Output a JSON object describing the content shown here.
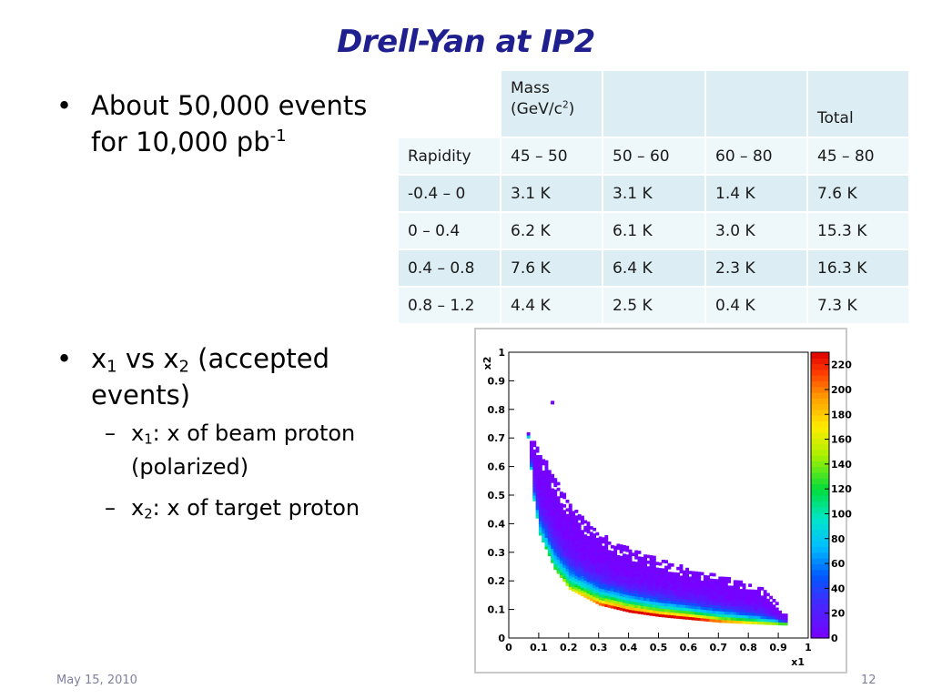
{
  "slide": {
    "title": "Drell-Yan at IP2",
    "footer_date": "May 15, 2010",
    "page_number": "12",
    "title_color": "#1f1f8f"
  },
  "bullets": {
    "b1_main": "About 50,000 events for 10,000 pb",
    "b1_sup": "-1",
    "b2_pre": "x",
    "b2_sub1": "1",
    "b2_mid": " vs x",
    "b2_sub2": "2",
    "b2_post": " (accepted events)",
    "sub1_pre": "x",
    "sub1_sub": "1",
    "sub1_post": ": x of beam proton (polarized)",
    "sub2_pre": "x",
    "sub2_sub": "2",
    "sub2_post": ": x of target proton"
  },
  "table": {
    "mass_label_a": "Mass",
    "mass_label_b": "(GeV/c",
    "mass_label_sup": "2",
    "mass_label_c": ")",
    "total_label": "Total",
    "header": [
      "Rapidity",
      "45 – 50",
      "50 – 60",
      "60 – 80",
      "45 – 80"
    ],
    "rows": [
      [
        "-0.4 – 0",
        "3.1 K",
        "3.1 K",
        "1.4 K",
        "7.6 K"
      ],
      [
        "0 – 0.4",
        "6.2 K",
        "6.1 K",
        "3.0 K",
        "15.3 K"
      ],
      [
        "0.4 – 0.8",
        "7.6 K",
        "6.4 K",
        "2.3 K",
        "16.3 K"
      ],
      [
        "0.8 – 1.2",
        "4.4 K",
        "2.5 K",
        "0.4 K",
        "7.3 K"
      ]
    ]
  },
  "chart_data": {
    "type": "heatmap",
    "xlabel": "x1",
    "ylabel": "x2",
    "xlim": [
      0,
      1
    ],
    "ylim": [
      0,
      1
    ],
    "xticks": [
      "0",
      "0.1",
      "0.2",
      "0.3",
      "0.4",
      "0.5",
      "0.6",
      "0.7",
      "0.8",
      "0.9",
      "1"
    ],
    "yticks": [
      "0",
      "0.1",
      "0.2",
      "0.3",
      "0.4",
      "0.5",
      "0.6",
      "0.7",
      "0.8",
      "0.9",
      "1"
    ],
    "colorbar_ticks": [
      "0",
      "20",
      "40",
      "60",
      "80",
      "100",
      "120",
      "140",
      "160",
      "180",
      "200",
      "220"
    ],
    "colorbar_max": 230,
    "band": {
      "inner_edge": [
        [
          0.06,
          0.7
        ],
        [
          0.08,
          0.48
        ],
        [
          0.1,
          0.36
        ],
        [
          0.15,
          0.24
        ],
        [
          0.2,
          0.17
        ],
        [
          0.3,
          0.115
        ],
        [
          0.4,
          0.09
        ],
        [
          0.5,
          0.075
        ],
        [
          0.6,
          0.065
        ],
        [
          0.7,
          0.055
        ],
        [
          0.8,
          0.05
        ],
        [
          0.93,
          0.045
        ]
      ],
      "outer_edge": [
        [
          0.07,
          0.7
        ],
        [
          0.12,
          0.62
        ],
        [
          0.18,
          0.5
        ],
        [
          0.25,
          0.41
        ],
        [
          0.35,
          0.33
        ],
        [
          0.45,
          0.29
        ],
        [
          0.55,
          0.255
        ],
        [
          0.65,
          0.225
        ],
        [
          0.75,
          0.2
        ],
        [
          0.85,
          0.165
        ],
        [
          0.93,
          0.07
        ]
      ],
      "peak_count": 220,
      "outlier_point": [
        0.14,
        0.83
      ]
    }
  }
}
